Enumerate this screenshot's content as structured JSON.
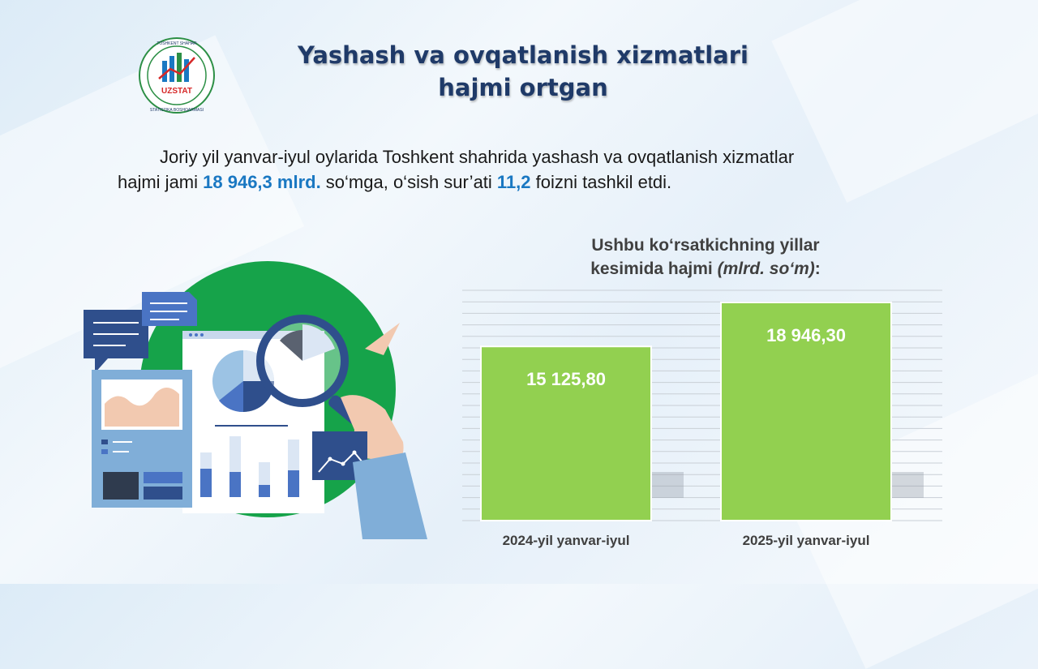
{
  "logo": {
    "arc_text_top": "TOSHKENT SHAHAR",
    "arc_text_bottom": "STATISTIKA BOSHQARMASI",
    "brand": "UZSTAT"
  },
  "title": {
    "line1": "Yashash va ovqatlanish xizmatlari",
    "line2": "hajmi ortgan"
  },
  "paragraph": {
    "p1": "Joriy yil yanvar-iyul oylarida Toshkent shahrida yashash va ovqatlanish xizmatlar",
    "p2": "hajmi jami ",
    "hl1": "18 946,3 mlrd.",
    "p3": " so‘mga, o‘sish sur’ati ",
    "hl2": "11,2",
    "p4": " foizni tashkil etdi."
  },
  "chart_title": {
    "line1": "Ushbu ko‘rsatkichning yillar",
    "line2a": "kesimida hajmi ",
    "unit": "(mlrd. so‘m)",
    "colon": ":"
  },
  "colors": {
    "bar": "#92d050",
    "title": "#1f3a68",
    "highlight": "#1a78c2",
    "illustration_circle": "#16a34a"
  },
  "chart_data": {
    "type": "bar",
    "categories": [
      "2024-yil yanvar-iyul",
      "2025-yil yanvar-iyul"
    ],
    "values": [
      15125.8,
      18946.3
    ],
    "value_labels": [
      "15 125,80",
      "18 946,30"
    ],
    "ylim": [
      0,
      20000
    ],
    "grid": true,
    "legend": "none"
  }
}
